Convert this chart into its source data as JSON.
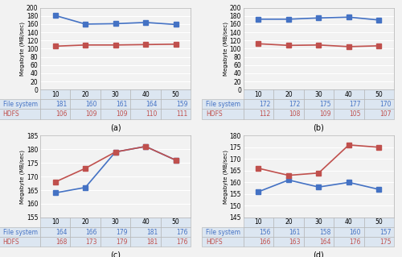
{
  "x": [
    10,
    20,
    30,
    40,
    50
  ],
  "subplots": [
    {
      "label": "(a)",
      "fs_values": [
        181,
        160,
        161,
        164,
        159
      ],
      "hdfs_values": [
        106,
        109,
        109,
        110,
        111
      ],
      "ylim": [
        0,
        200
      ],
      "yticks": [
        0,
        20,
        40,
        60,
        80,
        100,
        120,
        140,
        160,
        180,
        200
      ]
    },
    {
      "label": "(b)",
      "fs_values": [
        172,
        172,
        175,
        177,
        170
      ],
      "hdfs_values": [
        112,
        108,
        109,
        105,
        107
      ],
      "ylim": [
        0,
        200
      ],
      "yticks": [
        0,
        20,
        40,
        60,
        80,
        100,
        120,
        140,
        160,
        180,
        200
      ]
    },
    {
      "label": "(c)",
      "fs_values": [
        164,
        166,
        179,
        181,
        176
      ],
      "hdfs_values": [
        168,
        173,
        179,
        181,
        176
      ],
      "ylim": [
        155,
        185
      ],
      "yticks": [
        155,
        160,
        165,
        170,
        175,
        180,
        185
      ]
    },
    {
      "label": "(d)",
      "fs_values": [
        156,
        161,
        158,
        160,
        157
      ],
      "hdfs_values": [
        166,
        163,
        164,
        176,
        175
      ],
      "ylim": [
        145,
        180
      ],
      "yticks": [
        145,
        150,
        155,
        160,
        165,
        170,
        175,
        180
      ]
    }
  ],
  "fs_color": "#4472c4",
  "hdfs_color": "#c0504d",
  "fs_label": "File system",
  "hdfs_label": "HDFS",
  "ylabel": "Megabyte (MB/sec)",
  "marker": "s",
  "linewidth": 1.2,
  "markersize": 4,
  "bg_color": "#f2f2f2",
  "plot_bg": "#f2f2f2",
  "table_header_bg": "#dce6f1",
  "grid_color": "white",
  "table_edge_color": "#b0b0b0"
}
